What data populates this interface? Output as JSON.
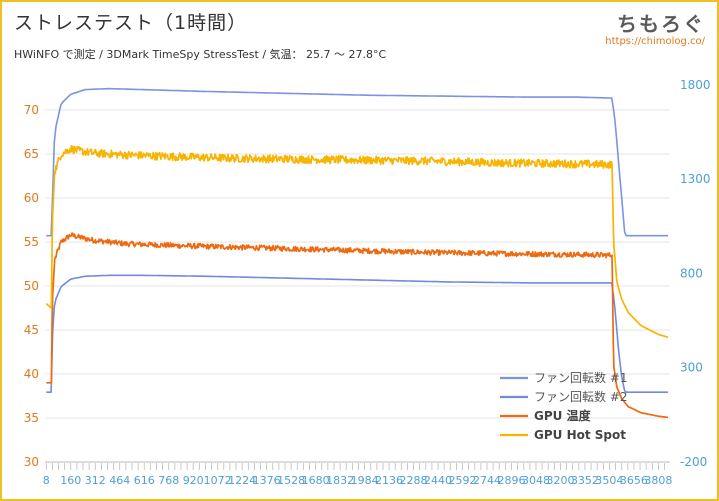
{
  "header": {
    "title": "ストレステスト（1時間）",
    "subtitle": "HWiNFO で測定 / 3DMark TimeSpy StressTest / 気温： 25.7 〜 27.8°C",
    "logo_text": "ちもろぐ",
    "logo_url": "https://chimolog.co/"
  },
  "colors": {
    "fan1": "#7b93e3",
    "fan2": "#6f8be0",
    "gpu_temp": "#ee6a10",
    "hotspot": "#f8b400",
    "left_axis": "#e07a1a",
    "right_axis": "#4f9fd4",
    "frame": "#f0c020"
  },
  "chart_data": {
    "type": "line",
    "x_ticks": [
      "8",
      "160",
      "312",
      "464",
      "616",
      "768",
      "920",
      "1072",
      "1224",
      "1376",
      "1528",
      "1680",
      "1832",
      "1984",
      "2136",
      "2288",
      "2440",
      "2592",
      "2744",
      "2896",
      "3048",
      "3200",
      "3352",
      "3504",
      "3656",
      "3808"
    ],
    "xlim": [
      0,
      3880
    ],
    "y_left": {
      "ticks": [
        "30",
        "35",
        "40",
        "45",
        "50",
        "55",
        "60",
        "65",
        "70"
      ],
      "ylim": [
        30,
        75
      ]
    },
    "y_right": {
      "ticks": [
        "-200",
        "300",
        "800",
        "1300",
        "1800"
      ],
      "ylim": [
        -200,
        1900
      ]
    },
    "legend": {
      "fan1": "ファン回転数 #1",
      "fan2": "ファン回転数 #2",
      "gpu_temp": "GPU 温度",
      "hotspot": "GPU Hot Spot"
    },
    "series": [
      {
        "name": "ファン回転数 #1",
        "axis": "right",
        "x": [
          8,
          40,
          45,
          60,
          100,
          160,
          250,
          400,
          600,
          1000,
          1500,
          2000,
          2500,
          3000,
          3300,
          3520,
          3540,
          3570,
          3600,
          3640,
          3700,
          3808,
          3900
        ],
        "y": [
          1000,
          1000,
          1150,
          1550,
          1700,
          1750,
          1775,
          1780,
          1775,
          1765,
          1755,
          1745,
          1740,
          1735,
          1735,
          1730,
          1600,
          1300,
          1000,
          1000,
          1000,
          1000,
          1000
        ]
      },
      {
        "name": "ファン回転数 #2",
        "axis": "right",
        "x": [
          8,
          40,
          45,
          60,
          100,
          160,
          250,
          400,
          600,
          1000,
          1500,
          2000,
          2500,
          3000,
          3300,
          3520,
          3540,
          3560,
          3580,
          3600,
          3700,
          3808,
          3900
        ],
        "y": [
          170,
          170,
          450,
          650,
          730,
          770,
          785,
          790,
          790,
          785,
          775,
          765,
          755,
          750,
          750,
          750,
          600,
          400,
          250,
          170,
          170,
          170,
          170
        ]
      },
      {
        "name": "GPU 温度",
        "axis": "left",
        "x": [
          8,
          40,
          45,
          60,
          100,
          160,
          200,
          300,
          500,
          800,
          1200,
          1600,
          2000,
          2400,
          2800,
          3200,
          3520,
          3530,
          3550,
          3580,
          3620,
          3700,
          3808,
          3900
        ],
        "y": [
          39,
          39,
          48,
          53,
          55,
          55.8,
          55.6,
          55.2,
          54.8,
          54.6,
          54.4,
          54.2,
          54.0,
          53.8,
          53.7,
          53.6,
          53.5,
          41,
          38.5,
          37.2,
          36.3,
          35.6,
          35.2,
          35.0
        ],
        "noise": 0.3
      },
      {
        "name": "GPU Hot Spot",
        "axis": "left",
        "x": [
          8,
          40,
          45,
          60,
          100,
          160,
          200,
          300,
          500,
          800,
          1200,
          1600,
          2000,
          2400,
          2800,
          3200,
          3520,
          3530,
          3550,
          3580,
          3620,
          3700,
          3808,
          3900
        ],
        "y": [
          48,
          47.5,
          57,
          63,
          65,
          65.6,
          65.4,
          65.1,
          64.9,
          64.7,
          64.5,
          64.4,
          64.3,
          64.2,
          64.0,
          63.9,
          63.8,
          55,
          50.5,
          48.5,
          47,
          45.5,
          44.5,
          44.0
        ],
        "noise": 0.45
      }
    ]
  }
}
